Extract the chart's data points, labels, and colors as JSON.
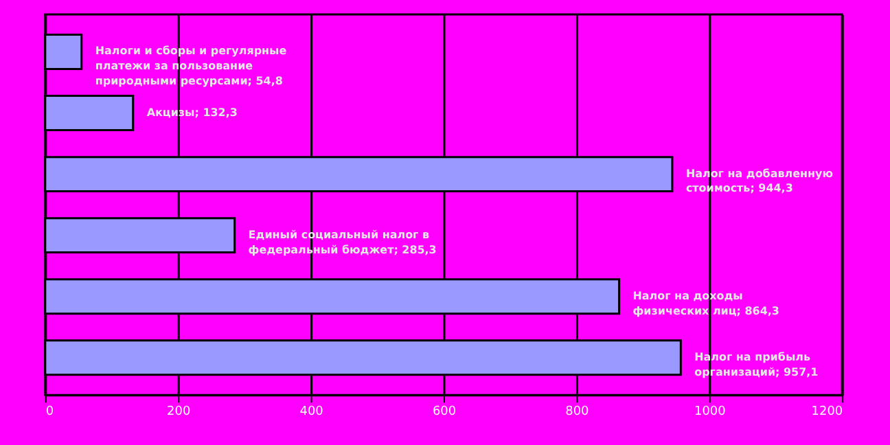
{
  "chart_data": {
    "type": "bar",
    "orientation": "horizontal",
    "categories": [
      null,
      null,
      null,
      null,
      null,
      null
    ],
    "values": [
      54.8,
      132.3,
      944.3,
      285.3,
      864.3,
      957.1
    ],
    "value_labels": [
      "Налоги и сборы и регулярные\nплатежи за пользование\nприродными ресурсами; 54,8",
      "Акцизы; 132,3",
      "Налог на добавленную\nстоимость; 944,3",
      "Единый социальный налог в\nфедеральный бюджет; 285,3",
      "Налог на доходы\nфизических лиц; 864,3",
      "Налог на прибыль\nорганизаций; 957,1"
    ],
    "color": "#9999ff",
    "xlim": [
      0,
      1200
    ],
    "xticks": [
      0,
      200,
      400,
      600,
      800,
      1000,
      1200
    ],
    "grid": "x",
    "tick_labels": "x"
  }
}
